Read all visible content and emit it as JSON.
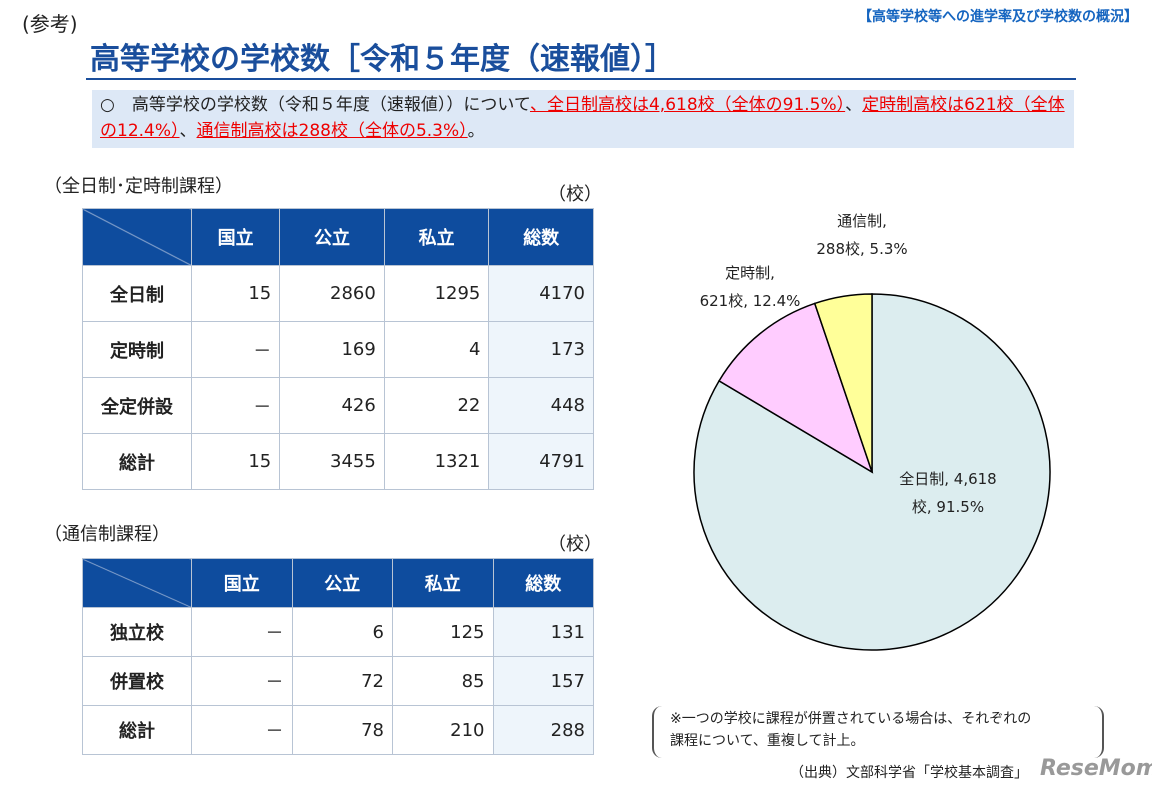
{
  "header": {
    "ref": "(参考)",
    "tag": "【高等学校等への進学率及び学校数の概況】",
    "title": "高等学校の学校数［令和５年度（速報値）］"
  },
  "summary": {
    "segments": [
      {
        "text": "○　高等学校の学校数（令和５年度（速報値））について",
        "red": false
      },
      {
        "text": "、全日制高校は4,618校（全体の91.5%）",
        "red": true
      },
      {
        "text": "、",
        "red": false
      },
      {
        "text": "定時制高校は621校（全体の12.4%）",
        "red": true
      },
      {
        "text": "、",
        "red": false
      },
      {
        "text": "通信制高校は288校（全体の5.3%）",
        "red": true
      },
      {
        "text": "。",
        "red": false
      }
    ]
  },
  "table1": {
    "caption": "（全日制･定時制課程）",
    "unit": "（校）",
    "columns": [
      "国立",
      "公立",
      "私立",
      "総数"
    ],
    "rows": [
      {
        "label": "全日制",
        "cells": [
          15,
          2860,
          1295,
          4170
        ]
      },
      {
        "label": "定時制",
        "cells": [
          "－",
          169,
          4,
          173
        ]
      },
      {
        "label": "全定併設",
        "cells": [
          "－",
          426,
          22,
          448
        ]
      },
      {
        "label": "総計",
        "cells": [
          15,
          3455,
          1321,
          4791
        ]
      }
    ]
  },
  "table2": {
    "caption": "（通信制課程）",
    "unit": "（校）",
    "columns": [
      "国立",
      "公立",
      "私立",
      "総数"
    ],
    "rows": [
      {
        "label": "独立校",
        "cells": [
          "－",
          6,
          125,
          131
        ]
      },
      {
        "label": "併置校",
        "cells": [
          "－",
          72,
          85,
          157
        ]
      },
      {
        "label": "総計",
        "cells": [
          "－",
          78,
          210,
          288
        ]
      }
    ]
  },
  "pie": {
    "slices": [
      {
        "value": 4618,
        "color": "#dcedef",
        "label_lines": [
          "全日制, 4,618",
          "校, 91.5%"
        ]
      },
      {
        "value": 621,
        "color": "#ffccff",
        "label_lines": [
          "定時制,",
          "621校, 12.4%"
        ]
      },
      {
        "value": 288,
        "color": "#ffff99",
        "label_lines": [
          "通信制,",
          "288校, 5.3%"
        ]
      }
    ]
  },
  "note": [
    "※一つの学校に課程が併置されている場合は、それぞれの",
    "課程について、重複して計上。"
  ],
  "source": "（出典）文部科学省「学校基本調査」",
  "watermark": "ReseMom"
}
